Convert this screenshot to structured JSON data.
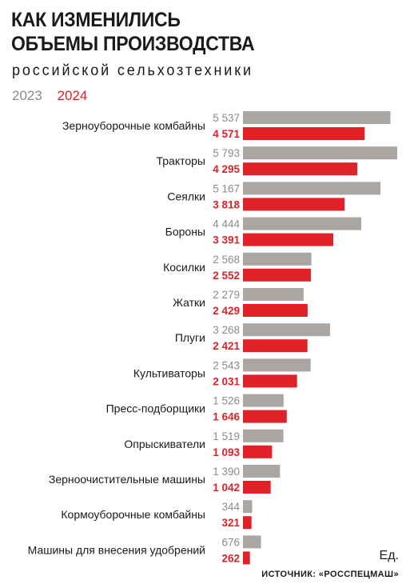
{
  "header": {
    "title": "КАК ИЗМЕНИЛИСЬ\nОБЪЕМЫ ПРОИЗВОДСТВА",
    "subtitle": "российской сельхозтехники"
  },
  "colors": {
    "y2023": "#aaa6a3",
    "y2024": "#e02127",
    "label2023": "#8e8a87",
    "text": "#1a1a1a"
  },
  "footer": {
    "unit": "Ед.",
    "source": "ИСТОЧНИК: «РОССПЕЦМАШ»"
  },
  "chart_data": {
    "type": "bar",
    "orientation": "horizontal",
    "categories": [
      "Зерноуборочные комбайны",
      "Тракторы",
      "Сеялки",
      "Бороны",
      "Косилки",
      "Жатки",
      "Плуги",
      "Культиваторы",
      "Пресс-подборщики",
      "Опрыскиватели",
      "Зерноочистительные машины",
      "Кормоуборочные комбайны",
      "Машины для внесения удобрений"
    ],
    "series": [
      {
        "name": "2023",
        "values": [
          5537,
          5793,
          5167,
          4444,
          2568,
          2279,
          3268,
          2543,
          1526,
          1519,
          1390,
          344,
          676
        ],
        "labels": [
          "5 537",
          "5 793",
          "5 167",
          "4 444",
          "2 568",
          "2 279",
          "3 268",
          "2 543",
          "1 526",
          "1 519",
          "1 390",
          "344",
          "676"
        ]
      },
      {
        "name": "2024",
        "values": [
          4571,
          4295,
          3818,
          3391,
          2552,
          2429,
          2421,
          2031,
          1646,
          1093,
          1042,
          321,
          262
        ],
        "labels": [
          "4 571",
          "4 295",
          "3 818",
          "3 391",
          "2 552",
          "2 429",
          "2 421",
          "2 031",
          "1 646",
          "1 093",
          "1 042",
          "321",
          "262"
        ]
      }
    ],
    "xlim": [
      0,
      5793
    ],
    "legend": "top-left"
  }
}
